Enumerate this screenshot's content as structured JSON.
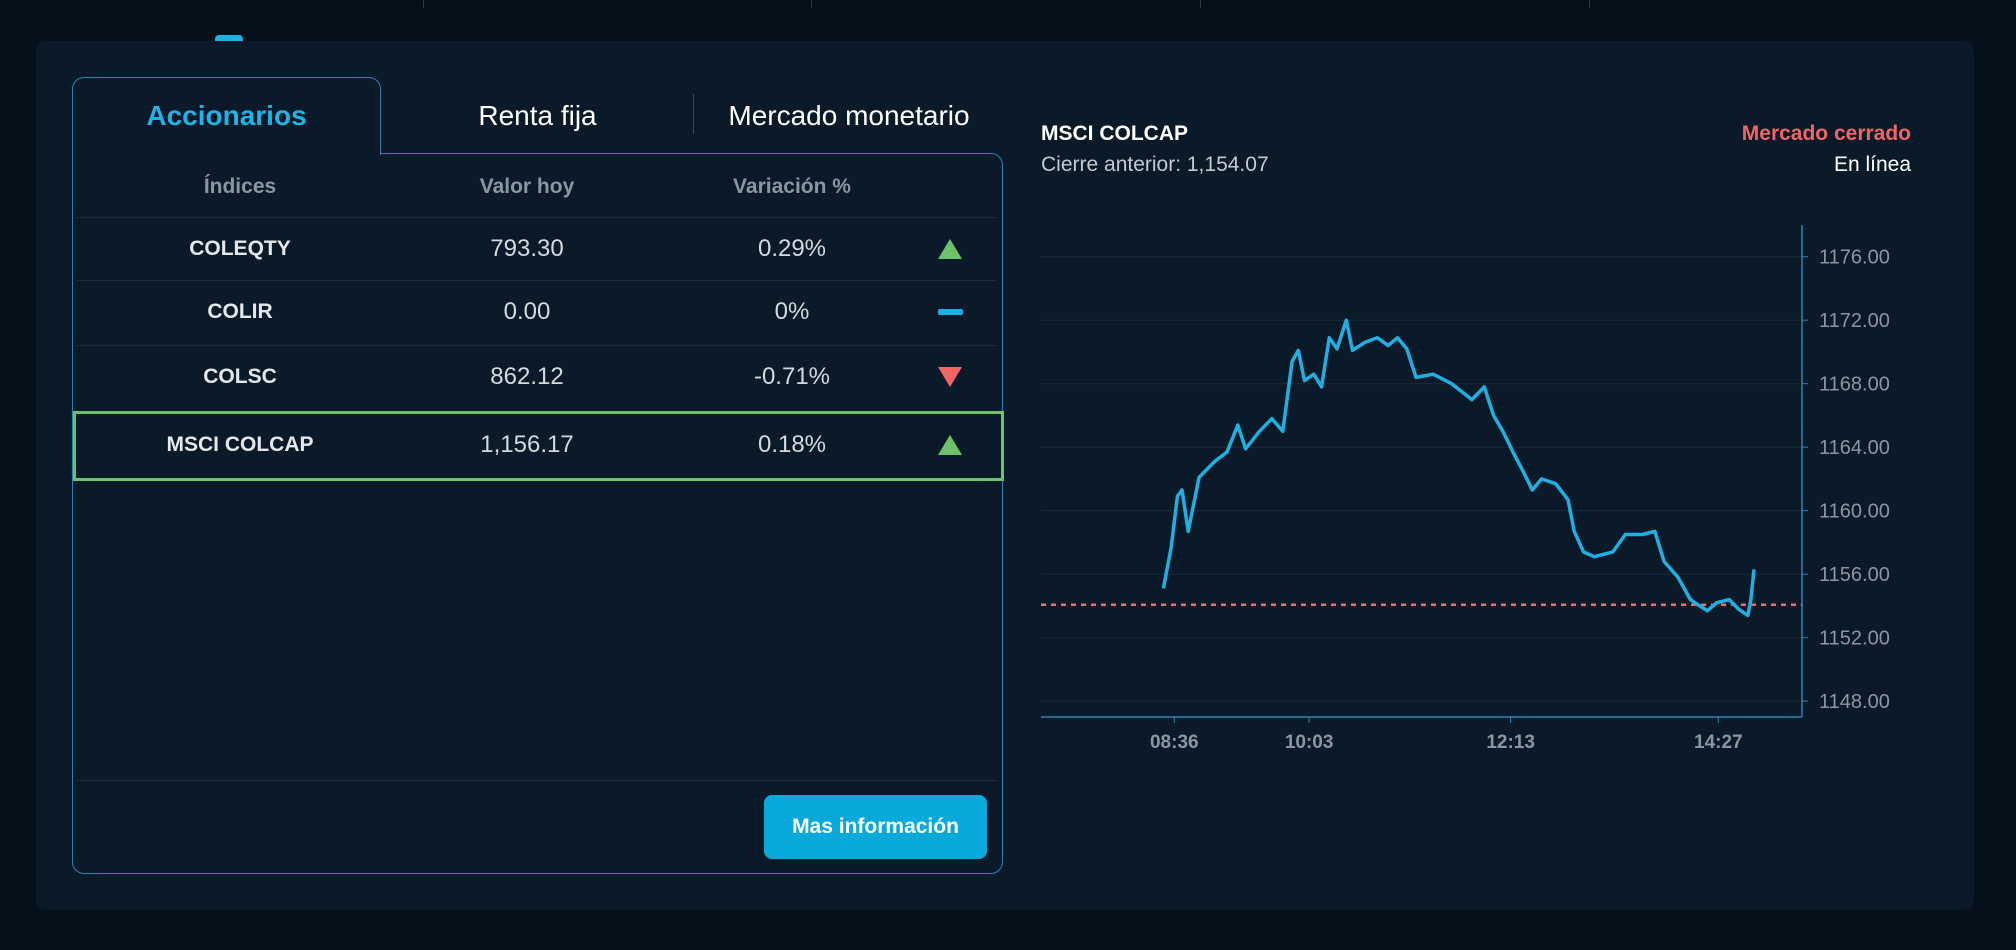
{
  "tabs": [
    "Accionarios",
    "Renta fija",
    "Mercado monetario"
  ],
  "active_tab": 0,
  "table": {
    "headers": [
      "Índices",
      "Valor hoy",
      "Variación %"
    ],
    "rows": [
      {
        "name": "COLEQTY",
        "value": "793.30",
        "change": "0.29%",
        "trend": "up"
      },
      {
        "name": "COLIR",
        "value": "0.00",
        "change": "0%",
        "trend": "flat"
      },
      {
        "name": "COLSC",
        "value": "862.12",
        "change": "-0.71%",
        "trend": "down"
      },
      {
        "name": "MSCI COLCAP",
        "value": "1,156.17",
        "change": "0.18%",
        "trend": "up"
      }
    ],
    "selected_row": 3
  },
  "button": "Mas información",
  "status": {
    "market": "Mercado cerrado",
    "mode": "En línea"
  },
  "chart_data": {
    "type": "line",
    "title": "MSCI COLCAP",
    "subtitle": "Cierre anterior: 1,154.07",
    "color": "#1fb0e3",
    "reference_line": 1154.07,
    "reference_color": "#f06a6a",
    "x": [
      509,
      514,
      518,
      521,
      525,
      532,
      542,
      550,
      557,
      562,
      571,
      579,
      586,
      592,
      596,
      600,
      606,
      611,
      616,
      621,
      627,
      631,
      639,
      647,
      654,
      660,
      666,
      672,
      683,
      695,
      708,
      716,
      722,
      728,
      735,
      741,
      747,
      753,
      762,
      770,
      774,
      780,
      787,
      799,
      807,
      818,
      826,
      832,
      841,
      849,
      855,
      860,
      866,
      874,
      880,
      886,
      888,
      890
    ],
    "values": [
      1155.1,
      1157.7,
      1160.9,
      1161.3,
      1158.7,
      1162.1,
      1163.1,
      1163.7,
      1165.4,
      1163.9,
      1165.0,
      1165.8,
      1165.0,
      1169.4,
      1170.1,
      1168.2,
      1168.6,
      1167.8,
      1170.9,
      1170.2,
      1172.0,
      1170.1,
      1170.6,
      1170.9,
      1170.4,
      1170.9,
      1170.2,
      1168.4,
      1168.6,
      1168.0,
      1167.0,
      1167.8,
      1166.0,
      1165.0,
      1163.6,
      1162.5,
      1161.3,
      1162.0,
      1161.7,
      1160.7,
      1158.7,
      1157.4,
      1157.1,
      1157.4,
      1158.5,
      1158.5,
      1158.7,
      1156.8,
      1155.8,
      1154.4,
      1154.0,
      1153.7,
      1154.2,
      1154.4,
      1153.8,
      1153.4,
      1154.4,
      1156.3
    ],
    "xlim": [
      430,
      921
    ],
    "xticks": [
      {
        "value": 516,
        "label": "08:36"
      },
      {
        "value": 603,
        "label": "10:03"
      },
      {
        "value": 733,
        "label": "12:13"
      },
      {
        "value": 867,
        "label": "14:27"
      }
    ],
    "ylim": [
      1147,
      1178
    ],
    "yticks": [
      {
        "value": 1148,
        "label": "1148.00"
      },
      {
        "value": 1152,
        "label": "1152.00"
      },
      {
        "value": 1156,
        "label": "1156.00"
      },
      {
        "value": 1160,
        "label": "1160.00"
      },
      {
        "value": 1164,
        "label": "1164.00"
      },
      {
        "value": 1168,
        "label": "1168.00"
      },
      {
        "value": 1172,
        "label": "1172.00"
      },
      {
        "value": 1176,
        "label": "1176.00"
      }
    ],
    "grid": true
  }
}
